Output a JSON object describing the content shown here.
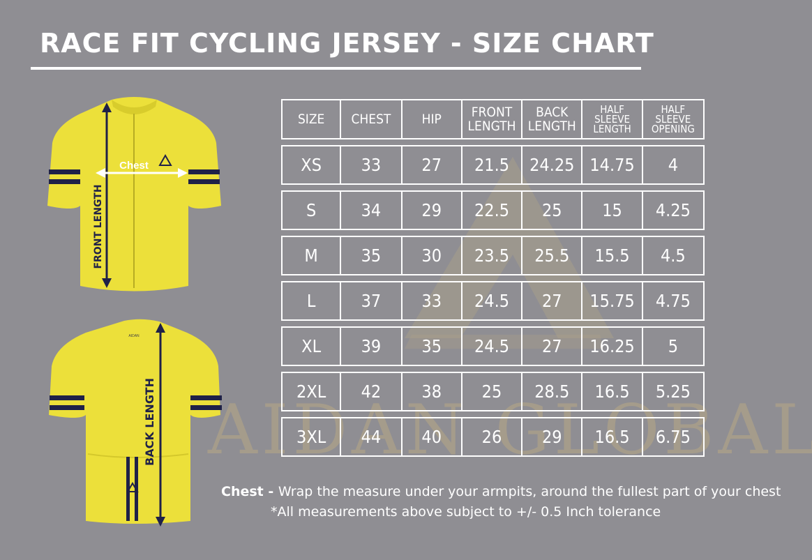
{
  "title": "RACE FIT CYCLING JERSEY - SIZE CHART",
  "colors": {
    "background": "#8f8e93",
    "jersey_yellow": "#ece03a",
    "stripe_navy": "#1f2148",
    "watermark": "#c6b280"
  },
  "diagram": {
    "front_label": "FRONT LENGTH",
    "chest_label": "Chest",
    "back_label": "BACK LENGTH",
    "back_tag": "AIDAN"
  },
  "watermark": {
    "text": "AIDAN GLOBAL"
  },
  "table": {
    "headers": [
      "SIZE",
      "CHEST",
      "HIP",
      "FRONT LENGTH",
      "BACK LENGTH",
      "HALF SLEEVE LENGTH",
      "HALF SLEEVE OPENING"
    ],
    "rows": [
      [
        "XS",
        "33",
        "27",
        "21.5",
        "24.25",
        "14.75",
        "4"
      ],
      [
        "S",
        "34",
        "29",
        "22.5",
        "25",
        "15",
        "4.25"
      ],
      [
        "M",
        "35",
        "30",
        "23.5",
        "25.5",
        "15.5",
        "4.5"
      ],
      [
        "L",
        "37",
        "33",
        "24.5",
        "27",
        "15.75",
        "4.75"
      ],
      [
        "XL",
        "39",
        "35",
        "24.5",
        "27",
        "16.25",
        "5"
      ],
      [
        "2XL",
        "42",
        "38",
        "25",
        "28.5",
        "16.5",
        "5.25"
      ],
      [
        "3XL",
        "44",
        "40",
        "26",
        "29",
        "16.5",
        "6.75"
      ]
    ]
  },
  "notes": {
    "chest_term": "Chest - ",
    "chest_text": "Wrap the measure under your armpits, around the fullest part of your chest",
    "tolerance": "*All measurements above subject to +/- 0.5 Inch tolerance"
  }
}
